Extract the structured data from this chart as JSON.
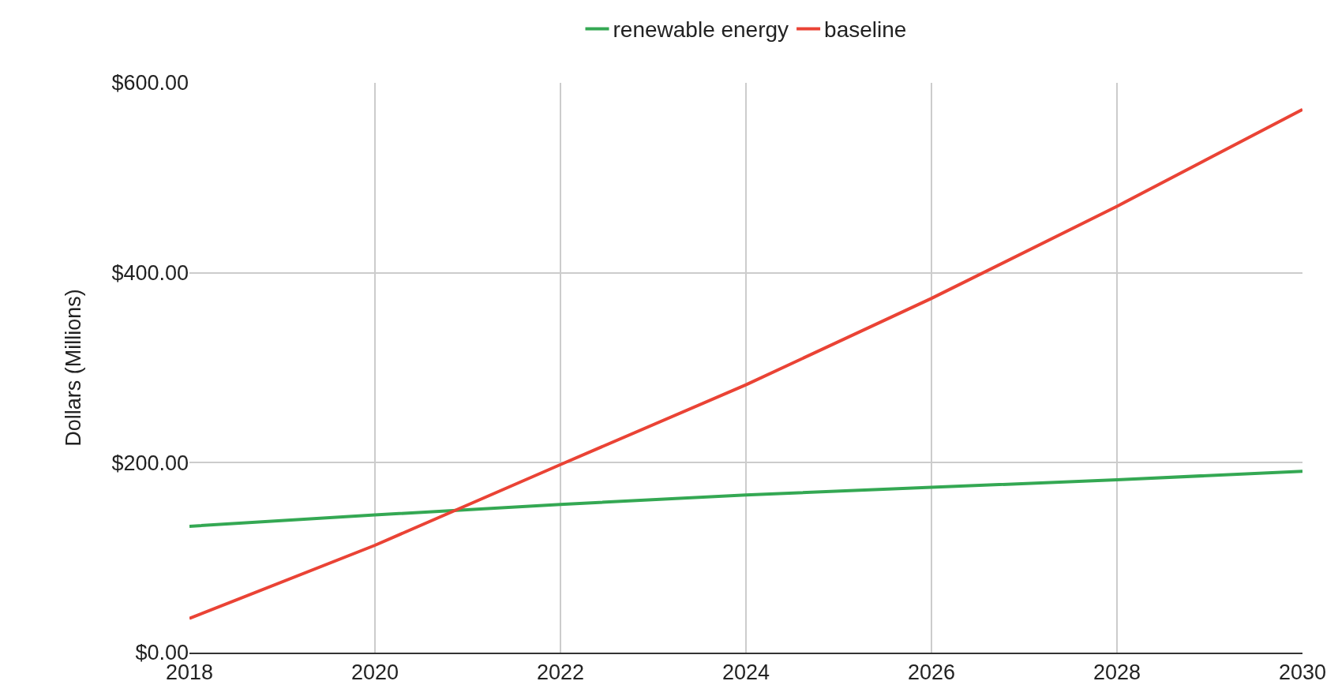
{
  "chart_data": {
    "type": "line",
    "ylabel": "Dollars (Millions)",
    "x": [
      2018,
      2020,
      2022,
      2024,
      2026,
      2028,
      2030
    ],
    "series": [
      {
        "name": "renewable energy",
        "color": "#34a853",
        "values": [
          133,
          145,
          156,
          166,
          174,
          182,
          191
        ]
      },
      {
        "name": "baseline",
        "color": "#ea4335",
        "values": [
          36,
          113,
          198,
          282,
          373,
          470,
          572
        ]
      }
    ],
    "xlim": [
      2018,
      2030
    ],
    "xticks": [
      2018,
      2020,
      2022,
      2024,
      2026,
      2028,
      2030
    ],
    "ylim": [
      0,
      600
    ],
    "yticks": [
      {
        "value": 0,
        "label": "$0.00"
      },
      {
        "value": 200,
        "label": "$200.00"
      },
      {
        "value": 400,
        "label": "$400.00"
      },
      {
        "value": 600,
        "label": "$600.00"
      }
    ],
    "grid": true,
    "legend": "top",
    "marker": "none",
    "line_style": "solid"
  }
}
